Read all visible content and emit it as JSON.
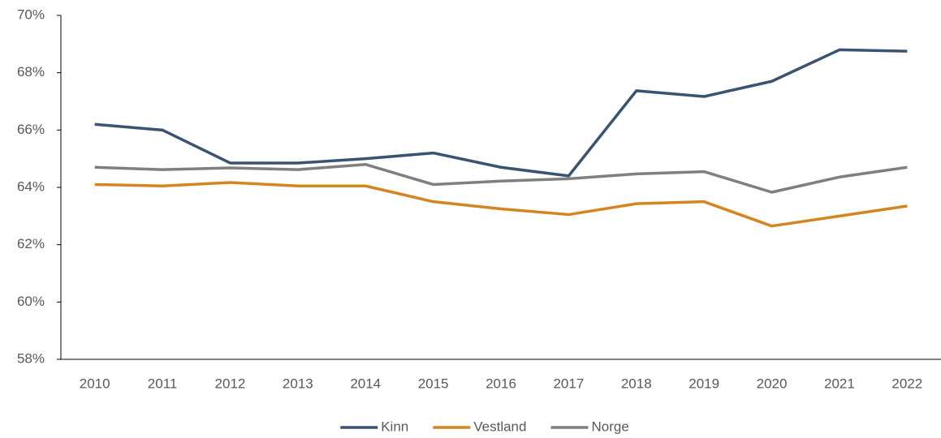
{
  "chart_data": {
    "type": "line",
    "categories": [
      "2010",
      "2011",
      "2012",
      "2013",
      "2014",
      "2015",
      "2016",
      "2017",
      "2018",
      "2019",
      "2020",
      "2021",
      "2022"
    ],
    "series": [
      {
        "name": "Kinn",
        "color": "#3b5373",
        "values": [
          66.2,
          66.0,
          64.85,
          64.85,
          65.0,
          65.2,
          64.7,
          64.4,
          67.37,
          67.17,
          67.7,
          68.8,
          68.75
        ]
      },
      {
        "name": "Vestland",
        "color": "#d5841f",
        "values": [
          64.1,
          64.05,
          64.17,
          64.05,
          64.05,
          63.5,
          63.25,
          63.05,
          63.43,
          63.5,
          62.65,
          63.0,
          63.35
        ]
      },
      {
        "name": "Norge",
        "color": "#7f7f7f",
        "values": [
          64.7,
          64.62,
          64.68,
          64.62,
          64.8,
          64.1,
          64.22,
          64.3,
          64.47,
          64.55,
          63.83,
          64.36,
          64.7
        ]
      }
    ],
    "ylim": [
      58,
      70
    ],
    "yticks": [
      {
        "value": 58,
        "label": "58%"
      },
      {
        "value": 60,
        "label": "60%"
      },
      {
        "value": 62,
        "label": "62%"
      },
      {
        "value": 64,
        "label": "64%"
      },
      {
        "value": 66,
        "label": "66%"
      },
      {
        "value": 68,
        "label": "68%"
      },
      {
        "value": 70,
        "label": "70%"
      }
    ],
    "grid": false,
    "legend": "bottom"
  }
}
